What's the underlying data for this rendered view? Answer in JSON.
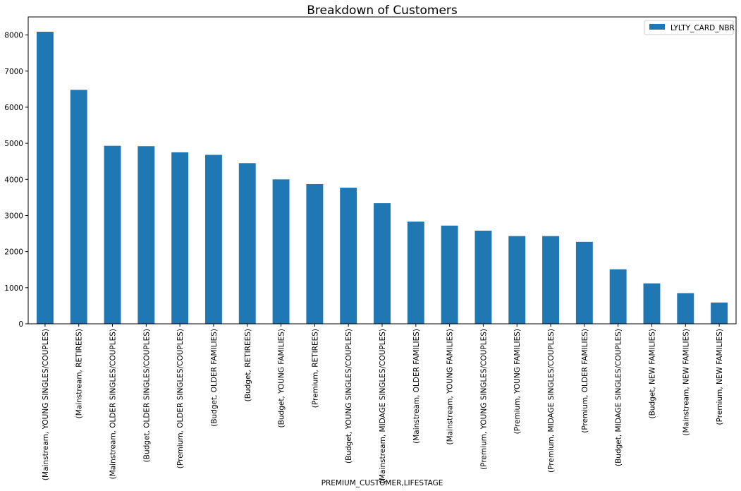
{
  "chart_data": {
    "type": "bar",
    "title": "Breakdown of Customers",
    "xlabel": "PREMIUM_CUSTOMER,LIFESTAGE",
    "ylabel": "",
    "ylim": [
      0,
      8500
    ],
    "yticks": [
      0,
      1000,
      2000,
      3000,
      4000,
      5000,
      6000,
      7000,
      8000
    ],
    "grid": false,
    "legend_position": "top-right",
    "bar_color": "#1f77b4",
    "categories": [
      "(Mainstream, YOUNG SINGLES/COUPLES)",
      "(Mainstream, RETIREES)",
      "(Mainstream, OLDER SINGLES/COUPLES)",
      "(Budget, OLDER SINGLES/COUPLES)",
      "(Premium, OLDER SINGLES/COUPLES)",
      "(Budget, OLDER FAMILIES)",
      "(Budget, RETIREES)",
      "(Budget, YOUNG FAMILIES)",
      "(Premium, RETIREES)",
      "(Budget, YOUNG SINGLES/COUPLES)",
      "(Mainstream, MIDAGE SINGLES/COUPLES)",
      "(Mainstream, OLDER FAMILIES)",
      "(Mainstream, YOUNG FAMILIES)",
      "(Premium, YOUNG SINGLES/COUPLES)",
      "(Premium, YOUNG FAMILIES)",
      "(Premium, MIDAGE SINGLES/COUPLES)",
      "(Premium, OLDER FAMILIES)",
      "(Budget, MIDAGE SINGLES/COUPLES)",
      "(Budget, NEW FAMILIES)",
      "(Mainstream, NEW FAMILIES)",
      "(Premium, NEW FAMILIES)"
    ],
    "series": [
      {
        "name": "LYLTY_CARD_NBR",
        "color": "#1f77b4",
        "values": [
          8090,
          6480,
          4930,
          4920,
          4750,
          4680,
          4450,
          4000,
          3870,
          3770,
          3340,
          2830,
          2720,
          2580,
          2430,
          2430,
          2270,
          1510,
          1120,
          850,
          590
        ]
      }
    ]
  }
}
